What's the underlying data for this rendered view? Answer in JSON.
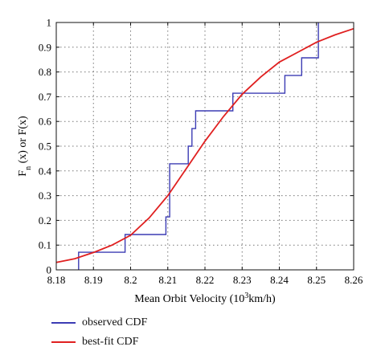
{
  "chart_data": {
    "type": "line",
    "title": "",
    "xlabel": "Mean Orbit Velocity (10",
    "xlabel_sup": "3",
    "xlabel_tail": "km/h)",
    "ylabel": "F",
    "ylabel_sub": "n",
    "ylabel_tail": " (x) or F(x)",
    "xlim": [
      8.18,
      8.26
    ],
    "ylim": [
      0,
      1
    ],
    "x_ticks": [
      8.18,
      8.19,
      8.2,
      8.21,
      8.22,
      8.23,
      8.24,
      8.25,
      8.26
    ],
    "x_tick_labels": [
      "8.18",
      "8.19",
      "8.2",
      "8.21",
      "8.22",
      "8.23",
      "8.24",
      "8.25",
      "8.26"
    ],
    "y_ticks": [
      0,
      0.1,
      0.2,
      0.3,
      0.4,
      0.5,
      0.6,
      0.7,
      0.8,
      0.9,
      1
    ],
    "y_tick_labels": [
      "0",
      "0.1",
      "0.2",
      "0.3",
      "0.4",
      "0.5",
      "0.6",
      "0.7",
      "0.8",
      "0.9",
      "1"
    ],
    "grid": true,
    "legend_position": "below",
    "series": [
      {
        "name": "observed CDF",
        "kind": "step",
        "color": "#3c3cb4",
        "x": [
          8.186,
          8.186,
          8.1985,
          8.1985,
          8.2095,
          8.2095,
          8.2105,
          8.2105,
          8.2155,
          8.2155,
          8.2165,
          8.2165,
          8.2175,
          8.2175,
          8.218,
          8.218,
          8.2275,
          8.2275,
          8.2415,
          8.2415,
          8.246,
          8.246,
          8.2505,
          8.2505
        ],
        "y": [
          0,
          0.071,
          0.071,
          0.143,
          0.143,
          0.214,
          0.214,
          0.429,
          0.429,
          0.5,
          0.5,
          0.571,
          0.571,
          0.643,
          0.643,
          0.643,
          0.643,
          0.714,
          0.714,
          0.786,
          0.786,
          0.857,
          0.857,
          1.0
        ]
      },
      {
        "name": "best-fit CDF",
        "kind": "line",
        "color": "#e02020",
        "x": [
          8.18,
          8.185,
          8.19,
          8.195,
          8.2,
          8.205,
          8.21,
          8.215,
          8.22,
          8.225,
          8.23,
          8.235,
          8.24,
          8.245,
          8.25,
          8.255,
          8.26
        ],
        "y": [
          0.03,
          0.045,
          0.07,
          0.1,
          0.14,
          0.21,
          0.3,
          0.41,
          0.52,
          0.62,
          0.71,
          0.78,
          0.84,
          0.88,
          0.92,
          0.95,
          0.975
        ]
      }
    ]
  }
}
